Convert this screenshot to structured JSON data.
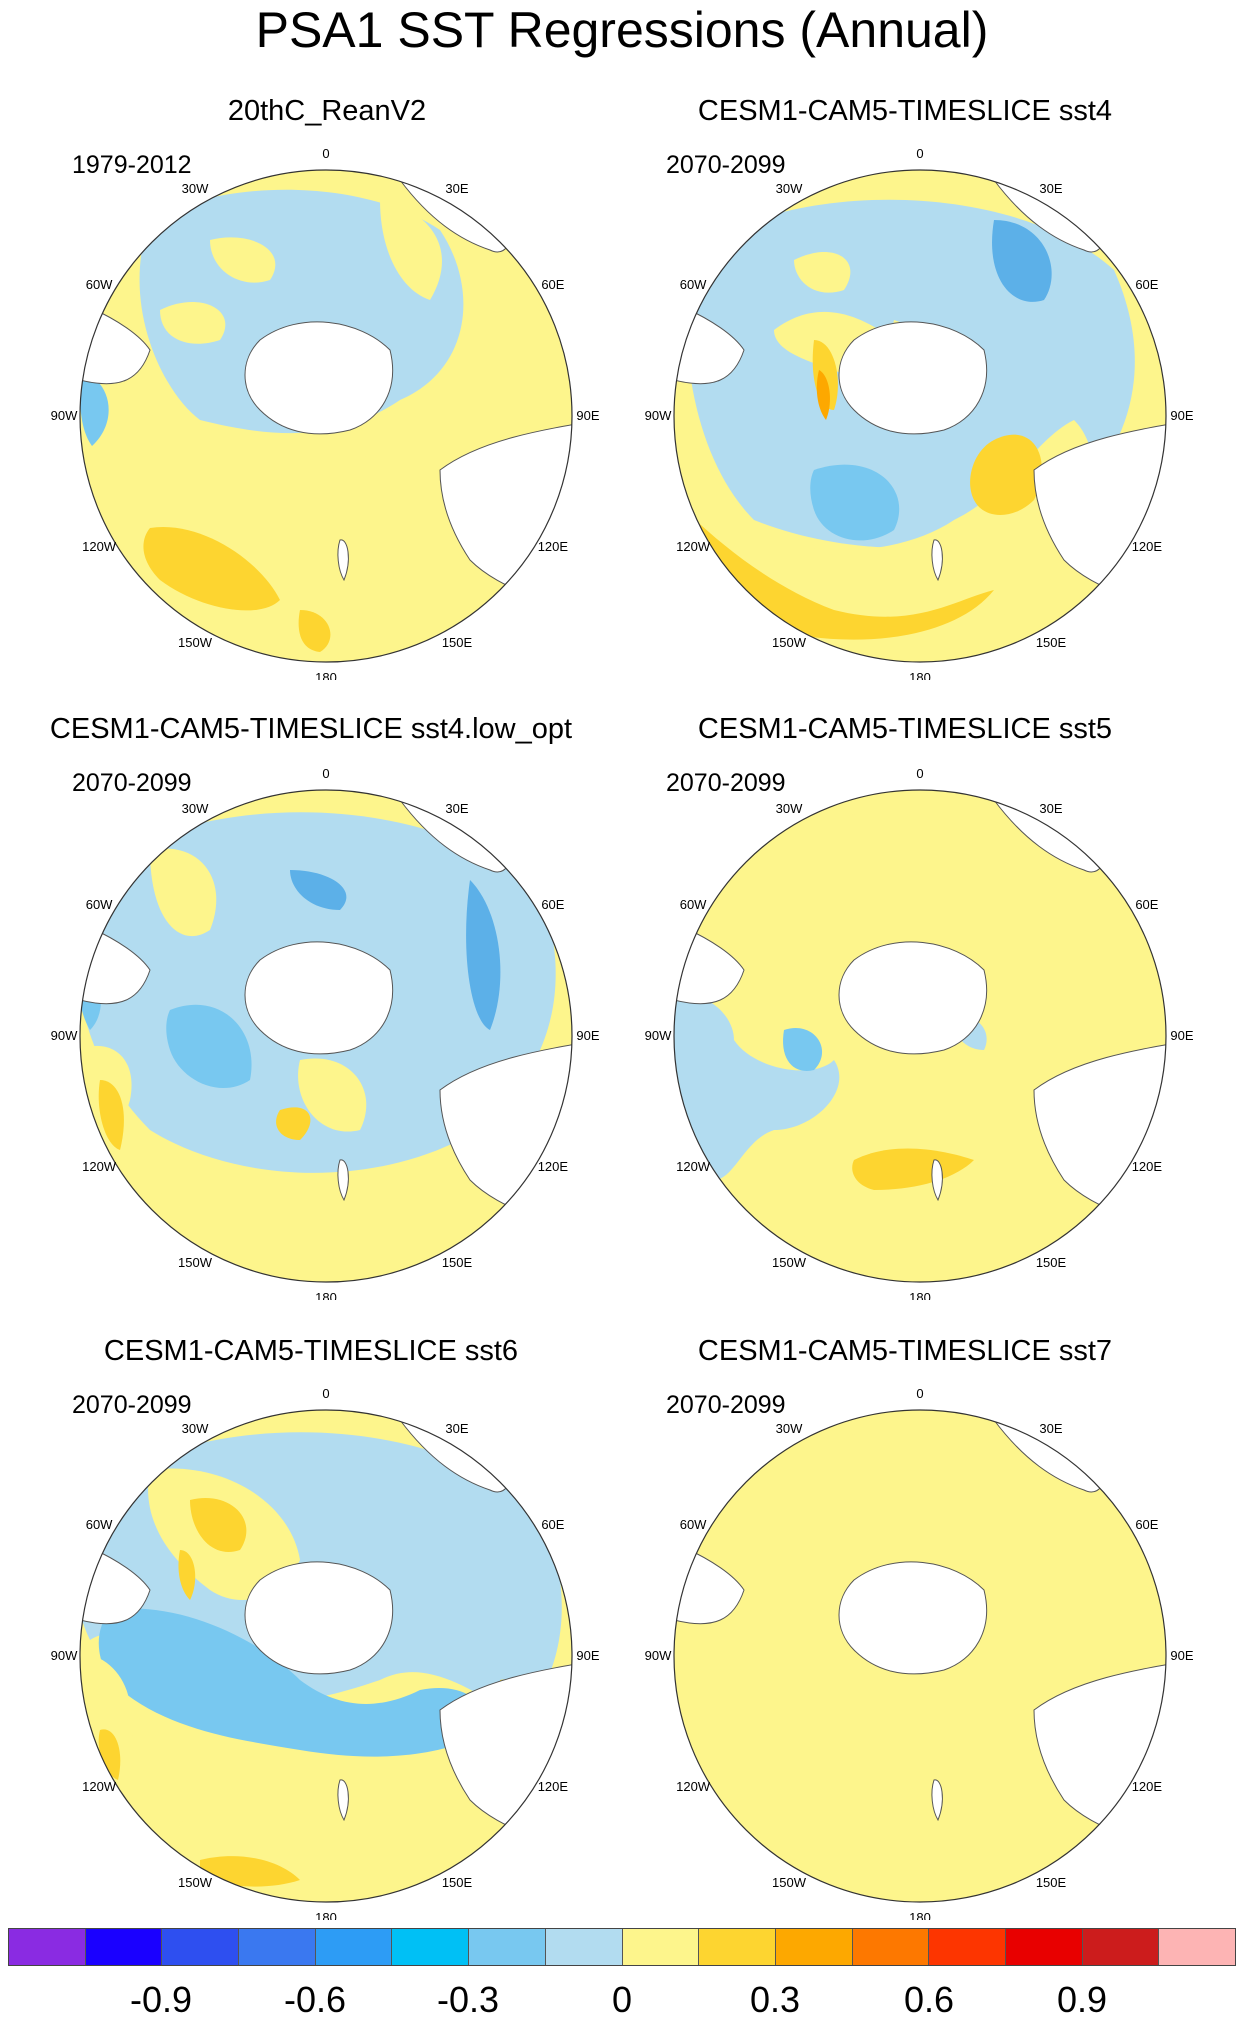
{
  "title": "PSA1 SST Regressions (Annual)",
  "panels": [
    {
      "title": "20thC_ReanV2",
      "period": "1979-2012"
    },
    {
      "title": "CESM1-CAM5-TIMESLICE sst4",
      "period": "2070-2099"
    },
    {
      "title": "CESM1-CAM5-TIMESLICE sst4.low_opt",
      "period": "2070-2099"
    },
    {
      "title": "CESM1-CAM5-TIMESLICE sst5",
      "period": "2070-2099"
    },
    {
      "title": "CESM1-CAM5-TIMESLICE sst6",
      "period": "2070-2099"
    },
    {
      "title": "CESM1-CAM5-TIMESLICE sst7",
      "period": "2070-2099"
    }
  ],
  "longitude_labels": [
    "0",
    "30E",
    "60E",
    "90E",
    "120E",
    "150E",
    "180",
    "150W",
    "120W",
    "90W",
    "60W",
    "30W"
  ],
  "colorbar": {
    "colors": [
      "#8a2be2",
      "#1a00ff",
      "#2e4ff0",
      "#3a78f0",
      "#2d9cf5",
      "#00c0f5",
      "#78c8f0",
      "#b2dcf0",
      "#fdf58c",
      "#fdd530",
      "#fda800",
      "#fd7800",
      "#fd3500",
      "#e80000",
      "#cc1c1c",
      "#fdb4b4"
    ],
    "tick_labels": [
      "-0.9",
      "-0.6",
      "-0.3",
      "0",
      "0.3",
      "0.6",
      "0.9"
    ]
  },
  "map_colors": {
    "yellow": "#fdf58c",
    "light_blue": "#b2dcf0",
    "mid_blue": "#78c8f0",
    "orange": "#fdd530",
    "dark_orange": "#fda800",
    "blue_strong": "#5cb0e8",
    "land": "#ffffff"
  }
}
